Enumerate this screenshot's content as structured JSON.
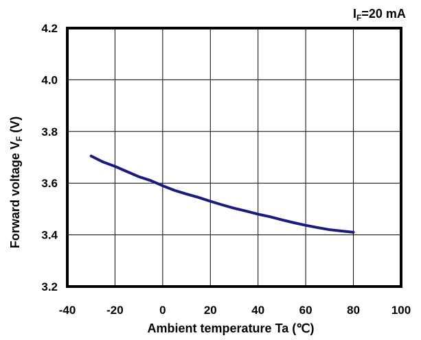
{
  "condition": {
    "symbol": "I",
    "subscript": "F",
    "value": "=20 mA"
  },
  "chart_data": {
    "type": "line",
    "title": "",
    "xlabel": "Ambient temperature Ta (℃)",
    "ylabel": {
      "prefix": "Forward voltage V",
      "subscript": "F",
      "suffix": " (V)"
    },
    "xlim": [
      -40,
      100
    ],
    "ylim": [
      3.2,
      4.2
    ],
    "xticks": [
      -40,
      -20,
      0,
      20,
      40,
      60,
      80,
      100
    ],
    "yticks": [
      3.2,
      3.4,
      3.6,
      3.8,
      4.0,
      4.2
    ],
    "ytick_labels": [
      "3.2",
      "3.4",
      "3.6",
      "3.8",
      "4.0",
      "4.2"
    ],
    "grid": true,
    "line_color": "#1c1a80",
    "series": [
      {
        "x": [
          -30,
          -25,
          -20,
          -15,
          -10,
          -5,
          0,
          5,
          10,
          15,
          20,
          25,
          30,
          35,
          40,
          45,
          50,
          55,
          60,
          65,
          70,
          75,
          80
        ],
        "y": [
          3.705,
          3.682,
          3.665,
          3.645,
          3.625,
          3.61,
          3.59,
          3.572,
          3.558,
          3.545,
          3.53,
          3.516,
          3.503,
          3.492,
          3.48,
          3.47,
          3.458,
          3.447,
          3.437,
          3.428,
          3.42,
          3.415,
          3.41
        ]
      }
    ]
  }
}
